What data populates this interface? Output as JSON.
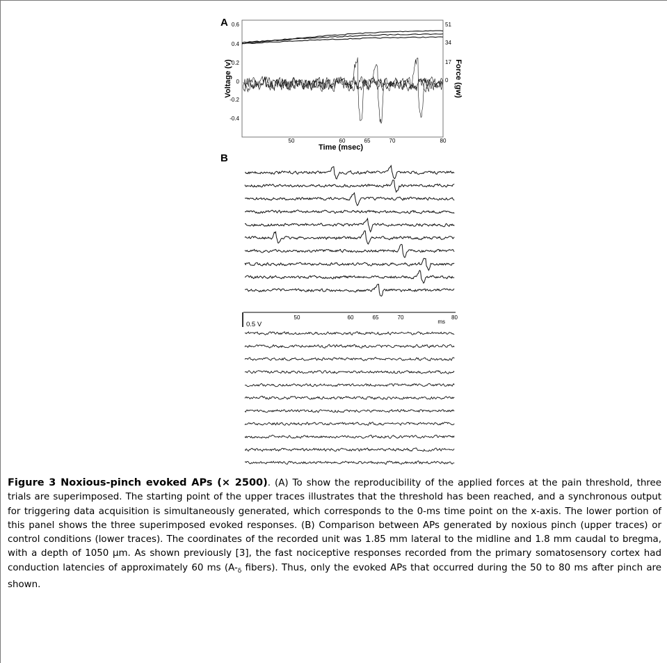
{
  "panel_a": {
    "label": "A",
    "ylabel_left": "Voltage (v)",
    "ylabel_right": "Force (gw)",
    "xlabel": "Time (msec)",
    "left_ticks": [
      "0.6",
      "0.4",
      "0.2",
      "0",
      "-0.2",
      "-0.4"
    ],
    "right_ticks": [
      "51",
      "34",
      "17",
      "0"
    ],
    "x_ticks": [
      "50",
      "60",
      "65",
      "70",
      "80"
    ]
  },
  "panel_b": {
    "label": "B",
    "scale_label": "0.5 V",
    "x_ticks": [
      "50",
      "60",
      "65",
      "70"
    ],
    "x_unit": "ms",
    "x_end": "80"
  },
  "caption": {
    "title": "Figure 3 Noxious-pinch evoked APs (× 2500)",
    "text_1": ". (A) To show the reproducibility of the applied forces at the pain threshold, three trials are superimposed. The starting point of the upper traces illustrates that the threshold has been reached, and a synchronous output for triggering data acquisition is simultaneously generated, which corresponds to the 0-ms time point on the x-axis. The lower portion of this panel shows the three superimposed evoked responses. (B) Comparison between APs generated by noxious pinch (upper traces) or control conditions (lower traces). The coordinates of the recorded unit was 1.85 mm lateral to the midline and 1.8 mm caudal to bregma, with a depth of 1050 µm. As shown previously [3], the fast nociceptive responses recorded from the primary somatosensory cortex had conduction latencies of approximately 60 ms (A-",
    "delta": "δ",
    "text_2": " fibers). Thus, only the evoked APs that occurred during the 50 to 80 ms after pinch are shown."
  },
  "chart_data": [
    {
      "type": "line",
      "title": "",
      "xlabel": "Time (msec)",
      "ylabel": "Voltage (v)",
      "y2label": "Force (gw)",
      "xlim": [
        40,
        80
      ],
      "ylim": [
        -0.5,
        0.6
      ],
      "y2lim": [
        0,
        51
      ],
      "series_description_note": "",
      "force_traces": [
        {
          "x": [
            40,
            80
          ],
          "y": [
            0.38,
            0.5
          ]
        },
        {
          "x": [
            40,
            80
          ],
          "y": [
            0.39,
            0.47
          ]
        },
        {
          "x": [
            40,
            80
          ],
          "y": [
            0.38,
            0.44
          ]
        }
      ],
      "spike_times_ms": [
        63,
        67,
        75
      ],
      "spike_amplitude": 0.22
    },
    {
      "type": "line",
      "x_ticks": [
        50,
        60,
        65,
        70,
        80
      ],
      "xlim": [
        40,
        80
      ],
      "pinch_traces": 10,
      "pinch_spike_times_ms": [
        [
          57,
          68
        ],
        [
          68.5
        ],
        [
          61
        ],
        [],
        [
          63.5
        ],
        [
          46,
          63
        ],
        [
          70
        ],
        [
          74.5
        ],
        [
          73.5
        ],
        [
          65.5
        ]
      ],
      "control_traces": 11
    }
  ]
}
